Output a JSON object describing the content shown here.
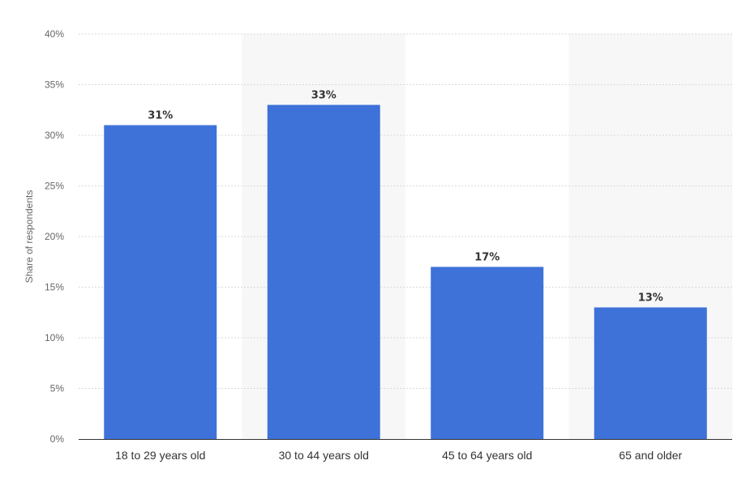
{
  "chart_data": {
    "type": "bar",
    "categories": [
      "18 to 29 years old",
      "30 to 44 years old",
      "45 to 64 years old",
      "65 and older"
    ],
    "values": [
      31,
      33,
      17,
      13
    ],
    "data_labels": [
      "31%",
      "33%",
      "17%",
      "13%"
    ],
    "title": "",
    "xlabel": "",
    "ylabel": "Share of respondents",
    "ylim": [
      0,
      40
    ],
    "yticks": [
      0,
      5,
      10,
      15,
      20,
      25,
      30,
      35,
      40
    ],
    "ytick_labels": [
      "0%",
      "5%",
      "10%",
      "15%",
      "20%",
      "25%",
      "30%",
      "35%",
      "40%"
    ],
    "grid": true,
    "legend": "none",
    "colors": {
      "bar": "#3e72d9",
      "band": "#f7f7f7",
      "grid": "#d9d9d9",
      "axis": "#333333"
    }
  }
}
